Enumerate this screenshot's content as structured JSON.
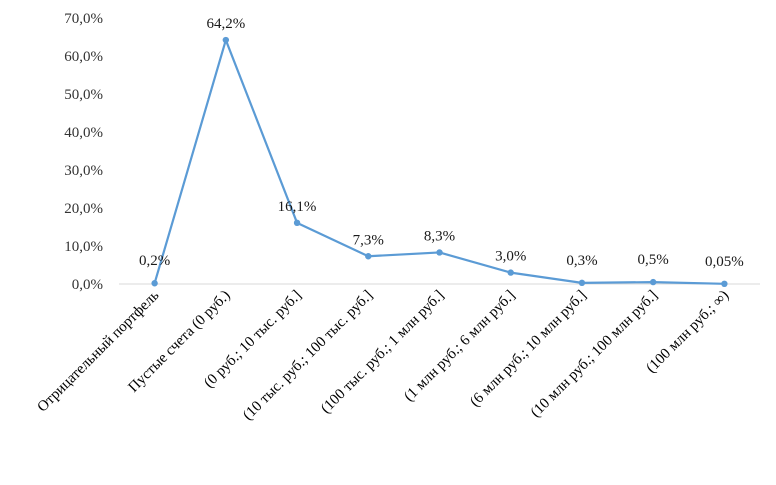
{
  "colors": {
    "series": "#5b9bd5",
    "axis": "#d9d9d9",
    "text": "#000000"
  },
  "chart_data": {
    "type": "line",
    "title": "",
    "xlabel": "",
    "ylabel": "",
    "ylim": [
      0,
      70
    ],
    "grid": false,
    "legend": "none",
    "y_ticks": [
      {
        "value": 0,
        "label": "0,0%"
      },
      {
        "value": 10,
        "label": "10,0%"
      },
      {
        "value": 20,
        "label": "20,0%"
      },
      {
        "value": 30,
        "label": "30,0%"
      },
      {
        "value": 40,
        "label": "40,0%"
      },
      {
        "value": 50,
        "label": "50,0%"
      },
      {
        "value": 60,
        "label": "60,0%"
      },
      {
        "value": 70,
        "label": "70,0%"
      }
    ],
    "categories": [
      "Отрицательный портфель",
      "Пустые счета (0 руб.)",
      "(0 руб.; 10 тыс. руб.]",
      "(10 тыс. руб.; 100 тыс. руб.]",
      "(100 тыс. руб.; 1 млн руб.]",
      "(1 млн руб.; 6 млн руб.]",
      "(6 млн руб.; 10 млн руб.]",
      "(10 млн руб.; 100 млн руб.]",
      "(100 млн руб.; ∞)"
    ],
    "series": [
      {
        "values": [
          0.2,
          64.2,
          16.1,
          7.3,
          8.3,
          3.0,
          0.3,
          0.5,
          0.05
        ],
        "labels": [
          "0,2%",
          "64,2%",
          "16,1%",
          "7,3%",
          "8,3%",
          "3,0%",
          "0,3%",
          "0,5%",
          "0,05%"
        ]
      }
    ]
  }
}
